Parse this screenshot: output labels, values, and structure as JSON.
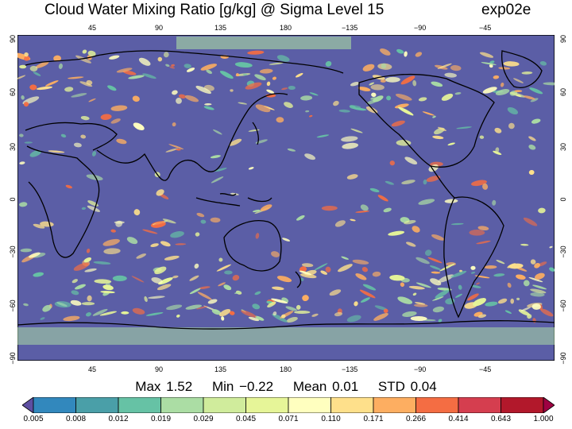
{
  "header": {
    "title": "Cloud Water Mixing Ratio [g/kg]  @ Sigma Level 15",
    "experiment": "exp02e"
  },
  "map": {
    "projection": "equirectangular",
    "background_color": "#5b5ea6",
    "coastline_color": "#000000",
    "lon_ticks_top": [
      "45",
      "90",
      "135",
      "180",
      "−135",
      "−90",
      "−45"
    ],
    "lon_ticks_bottom": [
      "45",
      "90",
      "135",
      "180",
      "−135",
      "−90",
      "−45"
    ],
    "lat_ticks_left": [
      "90",
      "60",
      "30",
      "0",
      "−30",
      "−60",
      "−90"
    ],
    "lat_ticks_right": [
      "90",
      "60",
      "30",
      "0",
      "−30",
      "−60",
      "−90"
    ]
  },
  "stats": {
    "max": "Max 1.52",
    "min": "Min −0.22",
    "mean": "Mean 0.01",
    "std": "STD 0.04"
  },
  "colorbar": {
    "labels": [
      "0.005",
      "0.008",
      "0.012",
      "0.019",
      "0.029",
      "0.045",
      "0.071",
      "0.110",
      "0.171",
      "0.266",
      "0.414",
      "0.643",
      "1.000"
    ],
    "colors": [
      "#5e4fa2",
      "#3288bd",
      "#4a9fa8",
      "#66c2a5",
      "#abdda4",
      "#d0ec9c",
      "#e6f598",
      "#ffffbf",
      "#fee08b",
      "#fdae61",
      "#f46d43",
      "#d53e4f",
      "#b2182b",
      "#9e0142"
    ]
  }
}
